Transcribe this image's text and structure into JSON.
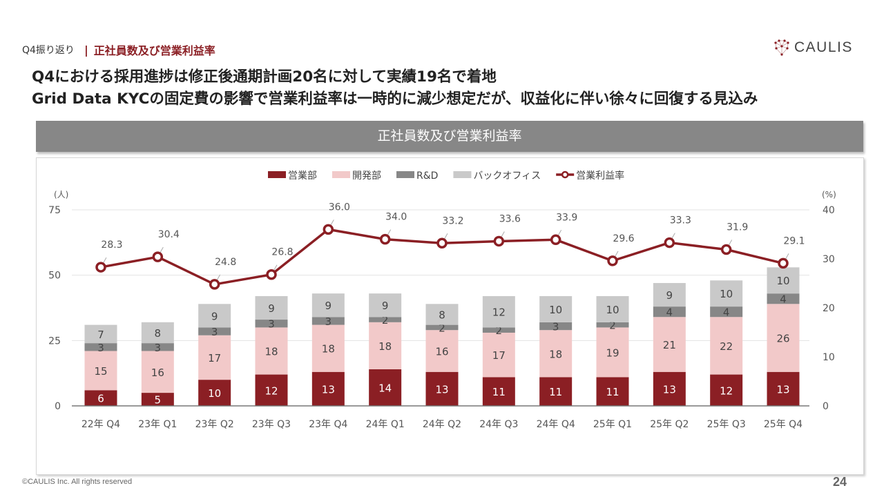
{
  "header": {
    "breadcrumb_parent": "Q4振り返り",
    "breadcrumb_separator": "|",
    "section_title": "正社員数及び営業利益率",
    "logo_text": "CAULIS",
    "headline_line1": "Q4における採用進捗は修正後通期計画20名に対して実績19名で着地",
    "headline_line2": "Grid Data KYCの固定費の影響で営業利益率は一時的に減少想定だが、収益化に伴い徐々に回復する見込み"
  },
  "footer": {
    "copyright": "©CAULIS Inc. All rights reserved",
    "page_number": "24"
  },
  "colors": {
    "brand": "#8b1f24",
    "sales": "#8b1f24",
    "dev": "#f2c9c9",
    "rnd": "#878787",
    "backoffice": "#c9c9c9",
    "margin_line": "#8b1f24",
    "banner": "#878787"
  },
  "chart_data": {
    "type": "bar",
    "subtype": "stacked-bar-with-line",
    "title": "正社員数及び営業利益率",
    "xlabel": "",
    "ylabel": "(人)",
    "y2label": "(%)",
    "ylim": [
      0,
      75
    ],
    "y_ticks": [
      "0",
      "25",
      "50",
      "75"
    ],
    "y2lim": [
      0,
      40
    ],
    "y2_ticks": [
      "0",
      "10",
      "20",
      "30",
      "40"
    ],
    "grid": true,
    "legend_position": "top-center",
    "categories": [
      "22年 Q4",
      "23年 Q1",
      "23年 Q2",
      "23年 Q3",
      "23年 Q4",
      "24年 Q1",
      "24年 Q2",
      "24年 Q3",
      "24年 Q4",
      "25年 Q1",
      "25年 Q2",
      "25年 Q3",
      "25年 Q4"
    ],
    "series": [
      {
        "name": "営業部",
        "type": "bar",
        "axis": "left",
        "color": "#8b1f24",
        "label_color": "#ffffff",
        "values": [
          6,
          5,
          10,
          12,
          13,
          14,
          13,
          11,
          11,
          11,
          13,
          12,
          13
        ]
      },
      {
        "name": "開発部",
        "type": "bar",
        "axis": "left",
        "color": "#f2c9c9",
        "label_color": "#444444",
        "values": [
          15,
          16,
          17,
          18,
          18,
          18,
          16,
          17,
          18,
          19,
          21,
          22,
          26
        ]
      },
      {
        "name": "R&D",
        "type": "bar",
        "axis": "left",
        "color": "#878787",
        "label_color": "#444444",
        "values": [
          3,
          3,
          3,
          3,
          3,
          2,
          2,
          2,
          3,
          2,
          4,
          4,
          4
        ]
      },
      {
        "name": "バックオフィス",
        "type": "bar",
        "axis": "left",
        "color": "#c9c9c9",
        "label_color": "#444444",
        "values": [
          7,
          8,
          9,
          9,
          9,
          9,
          8,
          12,
          10,
          10,
          9,
          10,
          10
        ]
      },
      {
        "name": "営業利益率",
        "type": "line",
        "axis": "right",
        "color": "#8b1f24",
        "values": [
          28.3,
          30.4,
          24.8,
          26.8,
          36.0,
          34.0,
          33.2,
          33.6,
          33.9,
          29.6,
          33.3,
          31.9,
          29.1
        ]
      }
    ]
  }
}
